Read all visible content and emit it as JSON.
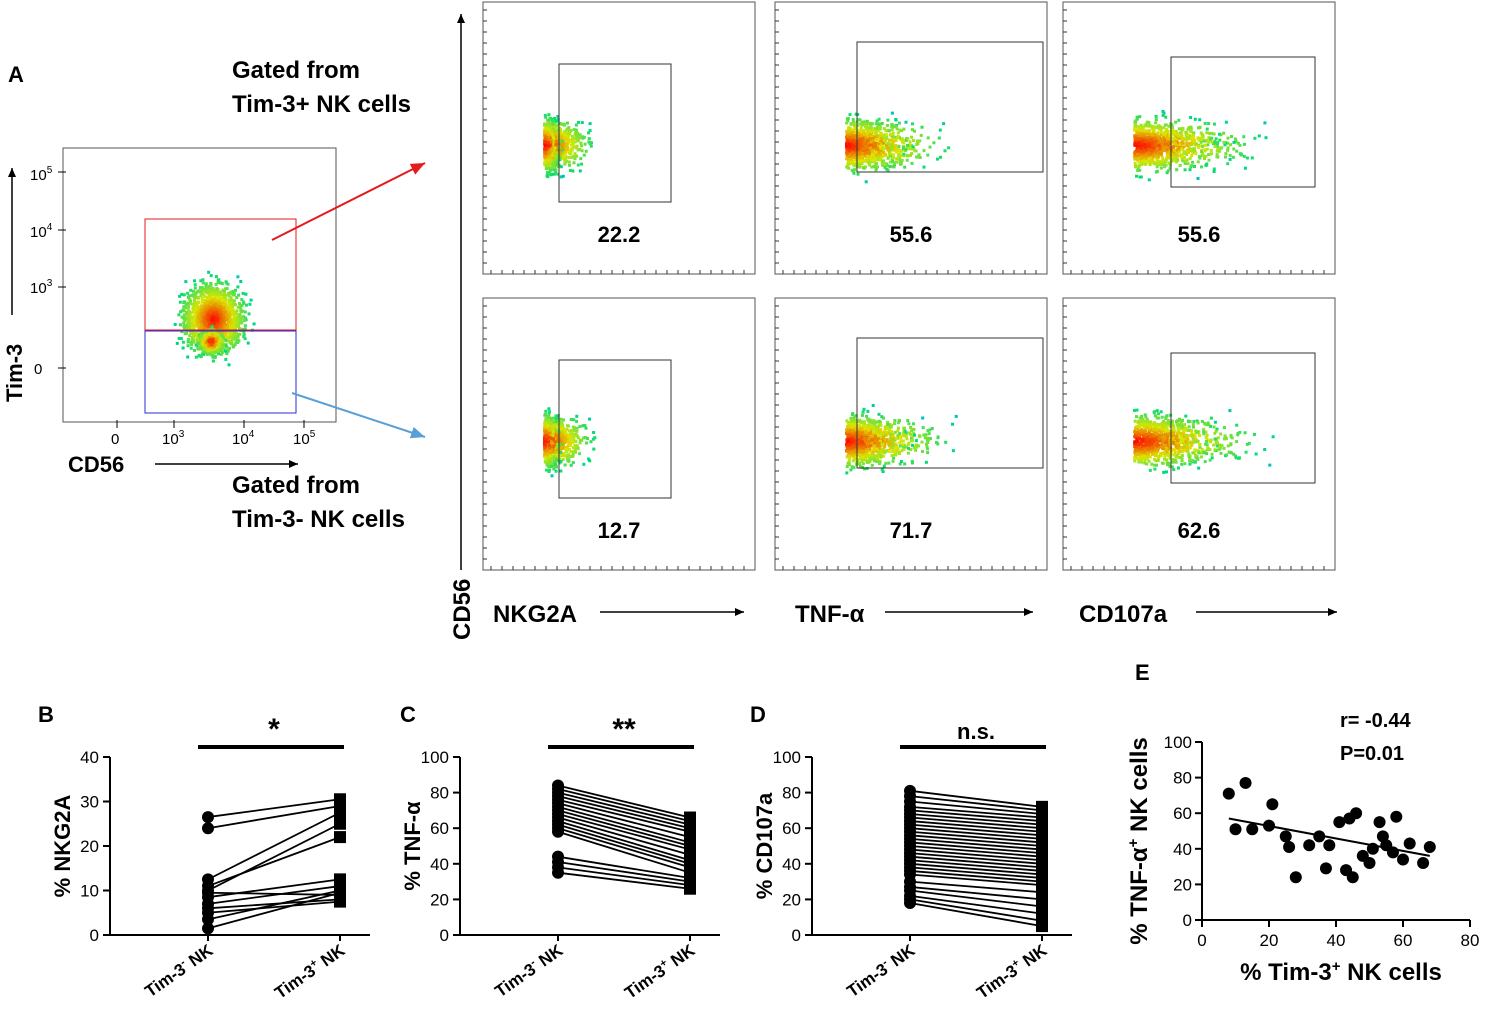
{
  "figure": {
    "panel_labels": {
      "A": "A",
      "B": "B",
      "C": "C",
      "D": "D",
      "E": "E"
    },
    "gate_text": {
      "pos_line1": "Gated from",
      "pos_line2": "Tim-3+ NK cells",
      "neg_line1": "Gated from",
      "neg_line2": "Tim-3- NK cells"
    },
    "colors": {
      "pos_gate": "#e41a1c",
      "neg_gate": "#2b2bd6",
      "arrow_pos": "#e41a1c",
      "arrow_neg": "#5aa0d8",
      "density_low": "#0000ff",
      "density_high": "#ff0000"
    }
  },
  "chart_data": [
    {
      "id": "A_gating",
      "type": "scatter",
      "title": "",
      "xlabel": "CD56",
      "ylabel": "Tim-3",
      "xticks": [
        "0",
        "10^3",
        "10^4",
        "10^5"
      ],
      "yticks": [
        "0",
        "10^3",
        "10^4",
        "10^5"
      ],
      "gates": [
        "Tim-3+ (red)",
        "Tim-3- (blue)"
      ]
    },
    {
      "id": "A_facs",
      "type": "scatter",
      "ylabel": "CD56",
      "markers": [
        "NKG2A",
        "TNF-α",
        "CD107a"
      ],
      "rows": [
        {
          "gate": "Tim-3+ NK cells",
          "values": [
            22.2,
            55.6,
            55.6
          ]
        },
        {
          "gate": "Tim-3- NK cells",
          "values": [
            12.7,
            71.7,
            62.6
          ]
        }
      ]
    },
    {
      "id": "B",
      "type": "line",
      "ylabel": "% NKG2A",
      "ylim": [
        0,
        40
      ],
      "yticks": [
        0,
        10,
        20,
        30,
        40
      ],
      "categories": [
        "Tim-3- NK",
        "Tim-3+ NK"
      ],
      "significance": "*",
      "pairs": [
        [
          26.5,
          30.5
        ],
        [
          24,
          29
        ],
        [
          12.5,
          27.5
        ],
        [
          11,
          22
        ],
        [
          10,
          25
        ],
        [
          9.5,
          9
        ],
        [
          8.5,
          12.5
        ],
        [
          7,
          11
        ],
        [
          6,
          8
        ],
        [
          5,
          7.5
        ],
        [
          3.5,
          10
        ],
        [
          1.5,
          9.5
        ]
      ]
    },
    {
      "id": "C",
      "type": "line",
      "ylabel": "% TNF-α",
      "ylim": [
        0,
        100
      ],
      "yticks": [
        0,
        20,
        40,
        60,
        80,
        100
      ],
      "categories": [
        "Tim-3- NK",
        "Tim-3+ NK"
      ],
      "significance": "**",
      "pairs": [
        [
          84,
          66
        ],
        [
          82,
          64
        ],
        [
          80,
          62
        ],
        [
          78,
          60
        ],
        [
          76,
          58
        ],
        [
          74,
          55
        ],
        [
          72,
          52
        ],
        [
          70,
          50
        ],
        [
          68,
          48
        ],
        [
          66,
          45
        ],
        [
          64,
          42
        ],
        [
          62,
          40
        ],
        [
          60,
          38
        ],
        [
          58,
          35
        ],
        [
          44,
          32
        ],
        [
          41,
          30
        ],
        [
          38,
          28
        ],
        [
          35,
          26
        ]
      ]
    },
    {
      "id": "D",
      "type": "line",
      "ylabel": "% CD107a",
      "ylim": [
        0,
        100
      ],
      "yticks": [
        0,
        20,
        40,
        60,
        80,
        100
      ],
      "categories": [
        "Tim-3- NK",
        "Tim-3+ NK"
      ],
      "significance": "n.s.",
      "pairs": [
        [
          81,
          72
        ],
        [
          78,
          70
        ],
        [
          75,
          68
        ],
        [
          72,
          66
        ],
        [
          70,
          64
        ],
        [
          68,
          62
        ],
        [
          66,
          60
        ],
        [
          64,
          58
        ],
        [
          62,
          56
        ],
        [
          60,
          54
        ],
        [
          58,
          52
        ],
        [
          56,
          50
        ],
        [
          54,
          48
        ],
        [
          52,
          46
        ],
        [
          50,
          44
        ],
        [
          48,
          42
        ],
        [
          46,
          40
        ],
        [
          44,
          38
        ],
        [
          42,
          36
        ],
        [
          40,
          34
        ],
        [
          38,
          32
        ],
        [
          36,
          30
        ],
        [
          34,
          28
        ],
        [
          30,
          24
        ],
        [
          27,
          20
        ],
        [
          25,
          16
        ],
        [
          22,
          12
        ],
        [
          20,
          8
        ],
        [
          18,
          5
        ]
      ]
    },
    {
      "id": "E",
      "type": "scatter",
      "xlabel": "% Tim-3+ NK cells",
      "ylabel": "% TNF-α+ NK cells",
      "xlim": [
        0,
        80
      ],
      "ylim": [
        0,
        100
      ],
      "xticks": [
        0,
        20,
        40,
        60,
        80
      ],
      "yticks": [
        0,
        20,
        40,
        60,
        80,
        100
      ],
      "annotation_r": "r= -0.44",
      "annotation_p": "P=0.01",
      "regression": {
        "x": [
          8,
          68
        ],
        "y": [
          57,
          36
        ]
      },
      "x": [
        8,
        10,
        13,
        15,
        20,
        21,
        25,
        26,
        28,
        32,
        35,
        37,
        38,
        41,
        43,
        44,
        45,
        46,
        48,
        50,
        51,
        53,
        54,
        55,
        57,
        58,
        60,
        62,
        66,
        68
      ],
      "y": [
        71,
        51,
        77,
        51,
        53,
        65,
        47,
        41,
        24,
        42,
        47,
        29,
        42,
        55,
        28,
        57,
        24,
        60,
        36,
        32,
        40,
        55,
        47,
        42,
        38,
        58,
        34,
        43,
        32,
        41
      ]
    }
  ]
}
